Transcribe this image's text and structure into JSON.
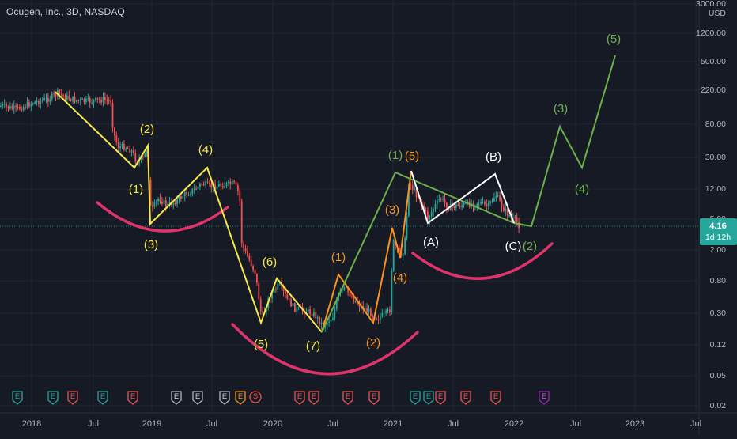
{
  "header": {
    "title": "Ocugen, Inc., 3D, NASDAQ"
  },
  "chart_data": {
    "type": "candlestick",
    "price_axis": {
      "currency": "USD",
      "scale": "log",
      "ticks": [
        "3000.00",
        "1200.00",
        "500.00",
        "220.00",
        "80.00",
        "30.00",
        "12.00",
        "5.00",
        "2.00",
        "0.80",
        "0.30",
        "0.12",
        "0.05",
        "0.02"
      ],
      "last_price": "4.16",
      "countdown": "1d 12h"
    },
    "time_axis": {
      "ticks": [
        "2018",
        "Jul",
        "2019",
        "Jul",
        "2020",
        "Jul",
        "2021",
        "Jul",
        "2022",
        "Jul",
        "2023",
        "Jul"
      ]
    },
    "wave_labels": [
      {
        "text": "(2)",
        "color": "yellow"
      },
      {
        "text": "(1)",
        "color": "yellow"
      },
      {
        "text": "(3)",
        "color": "yellow"
      },
      {
        "text": "(4)",
        "color": "yellow"
      },
      {
        "text": "(6)",
        "color": "yellow"
      },
      {
        "text": "(5)",
        "color": "yellow"
      },
      {
        "text": "(7)",
        "color": "yellow"
      },
      {
        "text": "(1)",
        "color": "orange"
      },
      {
        "text": "(2)",
        "color": "orange"
      },
      {
        "text": "(3)",
        "color": "orange"
      },
      {
        "text": "(4)",
        "color": "orange"
      },
      {
        "text": "(5)",
        "color": "orange"
      },
      {
        "text": "(1)",
        "color": "green"
      },
      {
        "text": "(2)",
        "color": "green"
      },
      {
        "text": "(3)",
        "color": "green"
      },
      {
        "text": "(4)",
        "color": "green"
      },
      {
        "text": "(5)",
        "color": "green"
      },
      {
        "text": "(A)",
        "color": "white"
      },
      {
        "text": "(B)",
        "color": "white"
      },
      {
        "text": "(C)",
        "color": "white"
      }
    ],
    "event_markers": [
      "E",
      "E",
      "E",
      "E",
      "E",
      "E",
      "E",
      "E",
      "E",
      "S",
      "E",
      "E",
      "E",
      "E",
      "E",
      "E",
      "E",
      "E",
      "E",
      "E",
      "E"
    ],
    "colors": {
      "background": "#161a25",
      "up_candle": "#26a69a",
      "down_candle": "#ef5350",
      "yellow": "#f5e94a",
      "orange": "#f7931e",
      "green": "#6db04a",
      "white": "#ffffff",
      "magenta_arc": "#e0336c",
      "last_price_badge": "#26a69a"
    }
  }
}
